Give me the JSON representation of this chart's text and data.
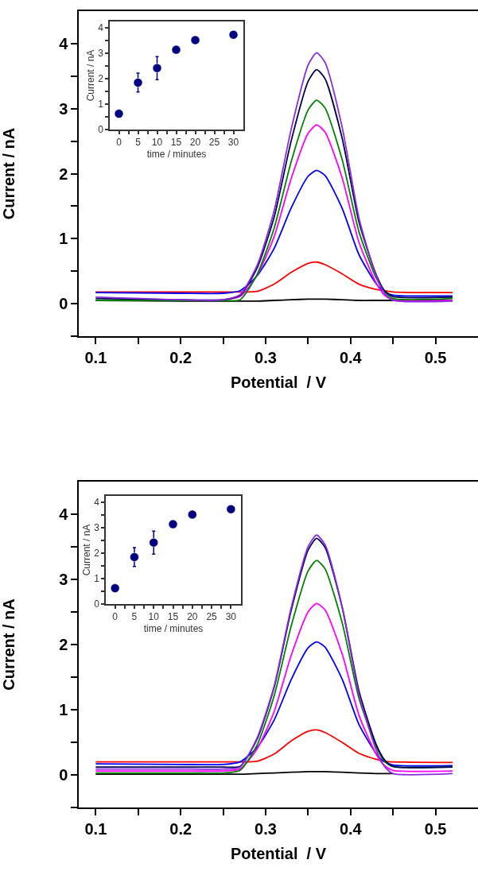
{
  "chart_data": [
    {
      "type": "line",
      "xlabel": "Potential  / V",
      "ylabel": "Current / nA",
      "marker": "none",
      "line_style": "solid",
      "x": [
        0.1,
        0.2,
        0.25,
        0.27,
        0.29,
        0.31,
        0.33,
        0.35,
        0.36,
        0.37,
        0.39,
        0.41,
        0.43,
        0.44,
        0.45,
        0.52
      ],
      "xlim": [
        0.08,
        0.55
      ],
      "ylim": [
        -0.5,
        4.5
      ],
      "xticks": [
        0.1,
        {
          "value": 0.15,
          "label": null
        },
        0.2,
        {
          "value": 0.25,
          "label": null
        },
        0.3,
        {
          "value": 0.35,
          "label": null
        },
        0.4,
        {
          "value": 0.45,
          "label": null
        },
        0.5
      ],
      "yticks": [
        {
          "value": -0.5,
          "label": null
        },
        0,
        {
          "value": 0.5,
          "label": null
        },
        1,
        {
          "value": 1.5,
          "label": null
        },
        2,
        {
          "value": 2.5,
          "label": null
        },
        3,
        {
          "value": 3.5,
          "label": null
        },
        4
      ],
      "series": [
        {
          "color": "#000000",
          "values": [
            0.05,
            0.04,
            0.04,
            0.04,
            0.04,
            0.05,
            0.06,
            0.07,
            0.07,
            0.07,
            0.06,
            0.05,
            0.05,
            0.05,
            0.05,
            0.05
          ]
        },
        {
          "color": "#ff0000",
          "values": [
            0.18,
            0.18,
            0.18,
            0.18,
            0.19,
            0.3,
            0.48,
            0.62,
            0.64,
            0.6,
            0.46,
            0.3,
            0.22,
            0.2,
            0.18,
            0.17
          ]
        },
        {
          "color": "#0000ff",
          "values": [
            0.17,
            0.16,
            0.16,
            0.2,
            0.43,
            0.85,
            1.47,
            1.96,
            2.05,
            1.97,
            1.47,
            0.75,
            0.31,
            0.18,
            0.13,
            0.12
          ]
        },
        {
          "color": "#ff00ff",
          "values": [
            null,
            null,
            0.06,
            0.11,
            0.44,
            1.03,
            1.92,
            2.62,
            2.75,
            2.64,
            1.94,
            0.94,
            0.32,
            0.13,
            0.06,
            0.05
          ]
        },
        {
          "color": "#008000",
          "values": [
            0.05,
            0.05,
            0.05,
            0.06,
            0.45,
            1.16,
            2.18,
            2.98,
            3.13,
            3.01,
            2.22,
            1.1,
            0.4,
            0.19,
            0.08,
            0.08
          ]
        },
        {
          "color": "#000050",
          "values": [
            0.08,
            0.06,
            0.06,
            0.13,
            0.55,
            1.33,
            2.5,
            3.42,
            3.6,
            3.46,
            2.55,
            1.25,
            0.45,
            0.2,
            0.11,
            0.1
          ]
        },
        {
          "color": "#8a2be2",
          "values": [
            0.1,
            0.06,
            0.06,
            0.14,
            0.59,
            1.43,
            2.68,
            3.67,
            3.86,
            3.71,
            2.72,
            1.31,
            0.43,
            0.16,
            0.05,
            0.04
          ]
        }
      ]
    },
    {
      "type": "scatter",
      "xlabel": "time / minutes",
      "ylabel": "Current / nA",
      "marker": "circle",
      "x": [
        0,
        5,
        10,
        15,
        20,
        30
      ],
      "xlim": [
        -2.4,
        32.6
      ],
      "ylim": [
        0,
        4.24
      ],
      "xticks": [
        0,
        {
          "value": 2.5,
          "label": null
        },
        5,
        {
          "value": 7.5,
          "label": null
        },
        10,
        {
          "value": 12.5,
          "label": null
        },
        15,
        {
          "value": 17.5,
          "label": null
        },
        20,
        {
          "value": 22.5,
          "label": null
        },
        25,
        {
          "value": 27.5,
          "label": null
        },
        30
      ],
      "yticks": [
        0,
        {
          "value": 0.5,
          "label": null
        },
        1,
        {
          "value": 1.5,
          "label": null
        },
        2,
        {
          "value": 2.5,
          "label": null
        },
        3,
        {
          "value": 3.5,
          "label": null
        },
        4
      ],
      "series": [
        {
          "color": "#000080",
          "values": [
            0.62,
            1.84,
            2.41,
            3.13,
            3.51,
            3.72
          ],
          "errors": [
            null,
            0.37,
            0.45,
            null,
            null,
            null
          ]
        }
      ]
    },
    {
      "type": "line",
      "xlabel": "Potential  / V",
      "ylabel": "Current / nA",
      "marker": "none",
      "line_style": "solid",
      "x": [
        0.1,
        0.2,
        0.25,
        0.27,
        0.29,
        0.31,
        0.33,
        0.35,
        0.36,
        0.37,
        0.39,
        0.41,
        0.43,
        0.44,
        0.45,
        0.52
      ],
      "xlim": [
        0.08,
        0.55
      ],
      "ylim": [
        -0.5,
        4.5
      ],
      "xticks": [
        0.1,
        {
          "value": 0.15,
          "label": null
        },
        0.2,
        {
          "value": 0.25,
          "label": null
        },
        0.3,
        {
          "value": 0.35,
          "label": null
        },
        0.4,
        {
          "value": 0.45,
          "label": null
        },
        0.5
      ],
      "yticks": [
        {
          "value": -0.5,
          "label": null
        },
        0,
        {
          "value": 0.5,
          "label": null
        },
        1,
        {
          "value": 1.5,
          "label": null
        },
        2,
        {
          "value": 2.5,
          "label": null
        },
        3,
        {
          "value": 3.5,
          "label": null
        },
        4
      ],
      "series": [
        {
          "color": "#000000",
          "values": [
            0.01,
            0.01,
            0.01,
            0.01,
            0.02,
            0.03,
            0.04,
            0.05,
            0.05,
            0.05,
            0.04,
            0.03,
            0.02,
            0.02,
            0.02,
            null
          ]
        },
        {
          "color": "#ff0000",
          "values": [
            0.2,
            0.2,
            0.2,
            0.2,
            0.21,
            0.32,
            0.52,
            0.67,
            0.69,
            0.65,
            0.5,
            0.33,
            0.24,
            0.21,
            0.2,
            0.19
          ]
        },
        {
          "color": "#0000ff",
          "values": [
            0.17,
            0.16,
            0.16,
            0.2,
            0.42,
            0.84,
            1.46,
            1.95,
            2.04,
            1.96,
            1.47,
            0.77,
            0.33,
            0.2,
            0.15,
            0.14
          ]
        },
        {
          "color": "#ff00ff",
          "values": [
            0.06,
            0.06,
            0.06,
            0.09,
            0.4,
            0.97,
            1.83,
            2.5,
            2.63,
            2.53,
            1.86,
            0.91,
            0.32,
            0.14,
            0.07,
            0.06
          ]
        },
        {
          "color": "#008000",
          "values": [
            0.03,
            0.03,
            0.03,
            0.07,
            0.46,
            1.21,
            2.28,
            3.13,
            3.29,
            3.16,
            2.34,
            1.17,
            0.44,
            0.21,
            0.13,
            0.12
          ]
        },
        {
          "color": "#000050",
          "values": [
            0.12,
            0.12,
            0.12,
            0.13,
            0.55,
            1.34,
            2.52,
            3.45,
            3.63,
            3.49,
            2.58,
            1.28,
            0.47,
            0.23,
            0.13,
            0.12
          ]
        },
        {
          "color": "#8a2be2",
          "values": [
            0.09,
            0.09,
            0.09,
            0.12,
            0.57,
            1.36,
            2.56,
            3.5,
            3.68,
            3.53,
            2.58,
            1.23,
            0.39,
            0.13,
            0.02,
            0.02
          ]
        }
      ]
    },
    {
      "type": "scatter",
      "xlabel": "time / minutes",
      "ylabel": "Current / nA",
      "marker": "circle",
      "x": [
        0,
        5,
        10,
        15,
        20,
        30
      ],
      "xlim": [
        -2.4,
        32.6
      ],
      "ylim": [
        0,
        4.24
      ],
      "xticks": [
        0,
        {
          "value": 2.5,
          "label": null
        },
        5,
        {
          "value": 7.5,
          "label": null
        },
        10,
        {
          "value": 12.5,
          "label": null
        },
        15,
        {
          "value": 17.5,
          "label": null
        },
        20,
        {
          "value": 22.5,
          "label": null
        },
        25,
        {
          "value": 27.5,
          "label": null
        },
        30
      ],
      "yticks": [
        0,
        {
          "value": 0.5,
          "label": null
        },
        1,
        {
          "value": 1.5,
          "label": null
        },
        2,
        {
          "value": 2.5,
          "label": null
        },
        3,
        {
          "value": 3.5,
          "label": null
        },
        4
      ],
      "series": [
        {
          "color": "#000080",
          "values": [
            0.62,
            1.84,
            2.41,
            3.13,
            3.51,
            3.72
          ],
          "errors": [
            null,
            0.37,
            0.45,
            null,
            null,
            null
          ]
        }
      ]
    }
  ]
}
